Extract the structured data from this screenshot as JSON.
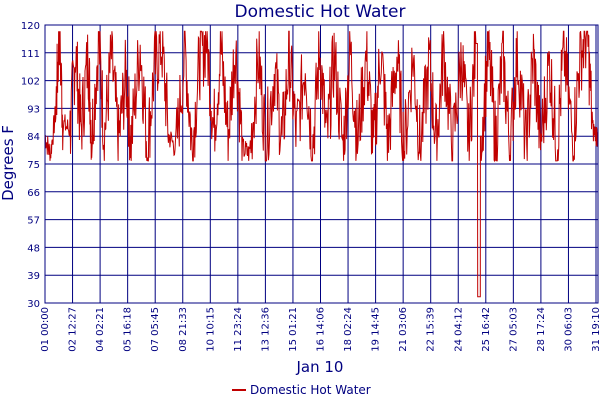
{
  "chart_data": {
    "type": "line",
    "title": "Domestic Hot Water",
    "ylabel": "Degrees F",
    "xlabel": "Jan 10",
    "ylim": [
      30,
      120
    ],
    "yticks": [
      "30",
      "39",
      "48",
      "57",
      "66",
      "75",
      "84",
      "93",
      "102",
      "111",
      "120"
    ],
    "xticks": [
      "01 00:00",
      "02 12:27",
      "04 02:21",
      "05 16:18",
      "07 05:45",
      "08 21:33",
      "10 10:15",
      "11 23:24",
      "13 12:36",
      "15 01:21",
      "16 14:06",
      "18 02:24",
      "19 14:45",
      "21 03:06",
      "22 15:39",
      "24 04:12",
      "25 16:42",
      "27 05:03",
      "28 17:24",
      "30 06:03",
      "31 19:10"
    ],
    "x_range_days": [
      0,
      30.8
    ],
    "grid": true,
    "legend_position": "bottom-center",
    "series": [
      {
        "name": "Domestic Hot Water",
        "color": "#c00000",
        "baseline_low": 80,
        "baseline_high": 88,
        "spike_max": 118,
        "points_approx": [
          [
            0.0,
            84
          ],
          [
            0.3,
            78
          ],
          [
            0.6,
            92
          ],
          [
            0.8,
            118
          ],
          [
            1.0,
            88
          ],
          [
            1.4,
            86
          ],
          [
            1.7,
            112
          ],
          [
            2.0,
            86
          ],
          [
            2.4,
            110
          ],
          [
            2.6,
            84
          ],
          [
            3.0,
            116
          ],
          [
            3.3,
            84
          ],
          [
            3.7,
            110
          ],
          [
            4.1,
            82
          ],
          [
            4.5,
            104
          ],
          [
            4.8,
            82
          ],
          [
            5.3,
            114
          ],
          [
            5.7,
            80
          ],
          [
            6.1,
            106
          ],
          [
            6.5,
            114
          ],
          [
            6.9,
            84
          ],
          [
            7.3,
            80
          ],
          [
            7.8,
            112
          ],
          [
            8.2,
            80
          ],
          [
            8.6,
            108
          ],
          [
            9.0,
            116
          ],
          [
            9.4,
            86
          ],
          [
            9.8,
            112
          ],
          [
            10.2,
            84
          ],
          [
            10.6,
            114
          ],
          [
            11.0,
            80
          ],
          [
            11.4,
            78
          ],
          [
            11.9,
            110
          ],
          [
            12.3,
            82
          ],
          [
            12.8,
            106
          ],
          [
            13.2,
            82
          ],
          [
            13.6,
            110
          ],
          [
            14.0,
            84
          ],
          [
            14.5,
            108
          ],
          [
            14.9,
            80
          ],
          [
            15.3,
            112
          ],
          [
            15.7,
            82
          ],
          [
            16.1,
            110
          ],
          [
            16.6,
            80
          ],
          [
            17.0,
            112
          ],
          [
            17.4,
            82
          ],
          [
            17.9,
            110
          ],
          [
            18.3,
            80
          ],
          [
            18.7,
            112
          ],
          [
            19.1,
            82
          ],
          [
            19.6,
            110
          ],
          [
            20.0,
            80
          ],
          [
            20.5,
            110
          ],
          [
            20.9,
            80
          ],
          [
            21.4,
            108
          ],
          [
            21.8,
            82
          ],
          [
            22.2,
            112
          ],
          [
            22.7,
            80
          ],
          [
            23.2,
            110
          ],
          [
            23.6,
            82
          ],
          [
            24.0,
            114
          ],
          [
            24.2,
            32
          ],
          [
            24.3,
            84
          ],
          [
            24.7,
            112
          ],
          [
            25.1,
            82
          ],
          [
            25.5,
            110
          ],
          [
            25.9,
            80
          ],
          [
            26.3,
            112
          ],
          [
            26.8,
            80
          ],
          [
            27.2,
            110
          ],
          [
            27.6,
            82
          ],
          [
            28.1,
            108
          ],
          [
            28.5,
            80
          ],
          [
            28.9,
            112
          ],
          [
            29.4,
            82
          ],
          [
            29.8,
            110
          ],
          [
            30.2,
            118
          ],
          [
            30.5,
            86
          ],
          [
            30.8,
            84
          ]
        ]
      }
    ]
  }
}
